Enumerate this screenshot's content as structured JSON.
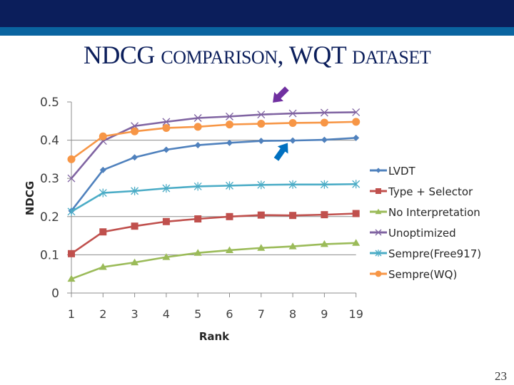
{
  "slide": {
    "title_parts": [
      {
        "text": "NDCG ",
        "style": "big"
      },
      {
        "text": "COMPARISON",
        "style": "sc"
      },
      {
        "text": ", WQT ",
        "style": "big"
      },
      {
        "text": "DATASET",
        "style": "sc"
      }
    ],
    "page_number": "23",
    "colors": {
      "header_band": "#0b1e5b",
      "header_stripe": "#0a64a0",
      "title": "#0b1e5b"
    },
    "annotations": [
      {
        "type": "arrow",
        "color": "#7030a0",
        "pointing_at": "Unoptimized"
      },
      {
        "type": "arrow",
        "color": "#0070c0",
        "pointing_at": "LVDT"
      }
    ]
  },
  "chart_data": {
    "type": "line",
    "title": "NDCG comparison, WQT dataset",
    "xlabel": "Rank",
    "ylabel": "NDCG",
    "categories": [
      "1",
      "2",
      "3",
      "4",
      "5",
      "6",
      "7",
      "8",
      "9",
      "19"
    ],
    "ylim": [
      0,
      0.5
    ],
    "yticks": [
      "0",
      "0.1",
      "0.2",
      "0.3",
      "0.4",
      "0.5"
    ],
    "grid": true,
    "legend_position": "right",
    "series": [
      {
        "name": "LVDT",
        "color": "#4f81bd",
        "marker": "diamond",
        "values": [
          0.215,
          0.322,
          0.355,
          0.375,
          0.387,
          0.393,
          0.398,
          0.399,
          0.401,
          0.406
        ]
      },
      {
        "name": "Type + Selector",
        "color": "#c0504d",
        "marker": "square",
        "values": [
          0.103,
          0.16,
          0.175,
          0.187,
          0.194,
          0.2,
          0.204,
          0.203,
          0.205,
          0.208
        ]
      },
      {
        "name": "No Interpretation",
        "color": "#9bbb59",
        "marker": "triangle",
        "values": [
          0.037,
          0.068,
          0.08,
          0.094,
          0.105,
          0.112,
          0.118,
          0.122,
          0.128,
          0.131
        ]
      },
      {
        "name": "Unoptimized",
        "color": "#8064a2",
        "marker": "x",
        "values": [
          0.3,
          0.398,
          0.437,
          0.448,
          0.458,
          0.462,
          0.467,
          0.47,
          0.472,
          0.473
        ]
      },
      {
        "name": "Sempre(Free917)",
        "color": "#4bacc6",
        "marker": "star",
        "values": [
          0.213,
          0.262,
          0.267,
          0.274,
          0.279,
          0.281,
          0.283,
          0.284,
          0.284,
          0.285
        ]
      },
      {
        "name": "Sempre(WQ)",
        "color": "#f79646",
        "marker": "circle",
        "values": [
          0.35,
          0.41,
          0.423,
          0.432,
          0.435,
          0.441,
          0.443,
          0.445,
          0.446,
          0.448
        ]
      }
    ]
  }
}
